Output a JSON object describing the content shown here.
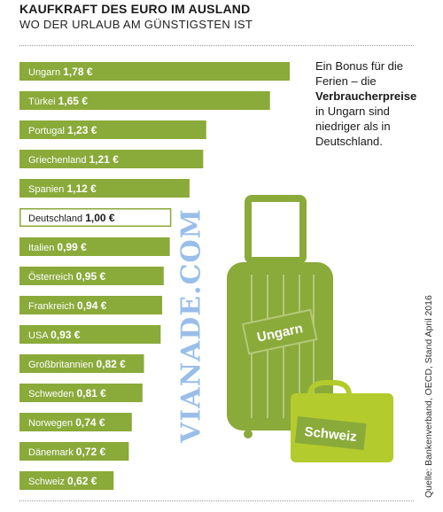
{
  "header": {
    "title": "KAUFKRAFT DES EURO IM AUSLAND",
    "subtitle": "WO DER URLAUB AM GÜNSTIGSTEN IST"
  },
  "note": {
    "part1": "Ein Bonus für die Ferien – die ",
    "bold": "Verbraucherpreise",
    "part2": " in Ungarn sind niedriger als in Deutschland."
  },
  "source": "Quelle: Bankenverband, OECD, Stand April 2016",
  "watermark": "VIANADE.COM",
  "illustration": {
    "tag_large": "Ungarn",
    "tag_small": "Schweiz"
  },
  "colors": {
    "bar": "#8aaa3a",
    "luggage": "#8aaa3a",
    "luggage_light": "#b5c97a",
    "tag_small_bg": "#b3cb2c",
    "reference_border": "#8aaa3a"
  },
  "chart_data": {
    "type": "bar",
    "orientation": "horizontal",
    "title": "KAUFKRAFT DES EURO IM AUSLAND",
    "subtitle": "WO DER URLAUB AM GÜNSTIGSTEN IST",
    "unit": "€",
    "reference_category": "Deutschland",
    "categories": [
      "Ungarn",
      "Türkei",
      "Portugal",
      "Griechenland",
      "Spanien",
      "Deutschland",
      "Italien",
      "Österreich",
      "Frankreich",
      "USA",
      "Großbritannien",
      "Schweden",
      "Norwegen",
      "Dänemark",
      "Schweiz"
    ],
    "values": [
      1.78,
      1.65,
      1.23,
      1.21,
      1.12,
      1.0,
      0.99,
      0.95,
      0.94,
      0.93,
      0.82,
      0.81,
      0.74,
      0.72,
      0.62
    ],
    "value_labels": [
      "1,78 €",
      "1,65 €",
      "1,23 €",
      "1,21 €",
      "1,12 €",
      "1,00 €",
      "0,99 €",
      "0,95 €",
      "0,94 €",
      "0,93 €",
      "0,82 €",
      "0,81 €",
      "0,74 €",
      "0,72 €",
      "0,62 €"
    ]
  }
}
